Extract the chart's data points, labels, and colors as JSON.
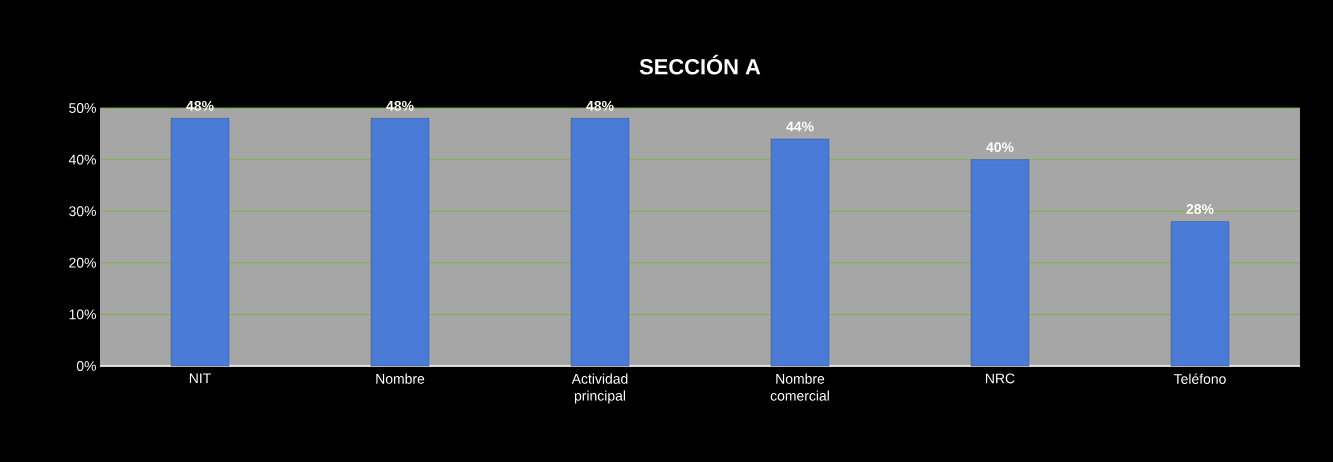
{
  "chart_data": {
    "type": "bar",
    "title": "SECCIÓN A",
    "categories": [
      "NIT",
      "Nombre",
      "Actividad principal",
      "Nombre comercial",
      "NRC",
      "Teléfono"
    ],
    "values": [
      48,
      48,
      48,
      44,
      40,
      28
    ],
    "value_labels": [
      "48%",
      "48%",
      "48%",
      "44%",
      "40%",
      "28%"
    ],
    "color": "#4a7bd6",
    "ylim": [
      0,
      50
    ],
    "yticks": [
      {
        "value": 0,
        "label": "0%"
      },
      {
        "value": 10,
        "label": "10%"
      },
      {
        "value": 20,
        "label": "20%"
      },
      {
        "value": 30,
        "label": "30%"
      },
      {
        "value": 40,
        "label": "40%"
      },
      {
        "value": 50,
        "label": "50%"
      }
    ],
    "grid": "y"
  }
}
